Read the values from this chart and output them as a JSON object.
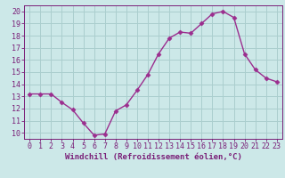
{
  "hours": [
    0,
    1,
    2,
    3,
    4,
    5,
    6,
    7,
    8,
    9,
    10,
    11,
    12,
    13,
    14,
    15,
    16,
    17,
    18,
    19,
    20,
    21,
    22,
    23
  ],
  "values": [
    13.2,
    13.2,
    13.2,
    12.5,
    11.9,
    10.8,
    9.8,
    9.9,
    11.8,
    12.3,
    13.5,
    14.8,
    16.5,
    17.8,
    18.3,
    18.2,
    19.0,
    19.8,
    20.0,
    19.5,
    16.5,
    15.2,
    14.5,
    14.2
  ],
  "line_color": "#9b2d8e",
  "marker_color": "#9b2d8e",
  "bg_color": "#cce8e8",
  "grid_color": "#aacece",
  "xlabel": "Windchill (Refroidissement éolien,°C)",
  "xlim": [
    -0.5,
    23.5
  ],
  "ylim": [
    9.5,
    20.5
  ],
  "yticks": [
    10,
    11,
    12,
    13,
    14,
    15,
    16,
    17,
    18,
    19,
    20
  ],
  "xticks": [
    0,
    1,
    2,
    3,
    4,
    5,
    6,
    7,
    8,
    9,
    10,
    11,
    12,
    13,
    14,
    15,
    16,
    17,
    18,
    19,
    20,
    21,
    22,
    23
  ],
  "tick_color": "#7a1f78",
  "label_fontsize": 6.5,
  "tick_fontsize": 6.0,
  "line_width": 1.0,
  "marker_size": 2.5
}
